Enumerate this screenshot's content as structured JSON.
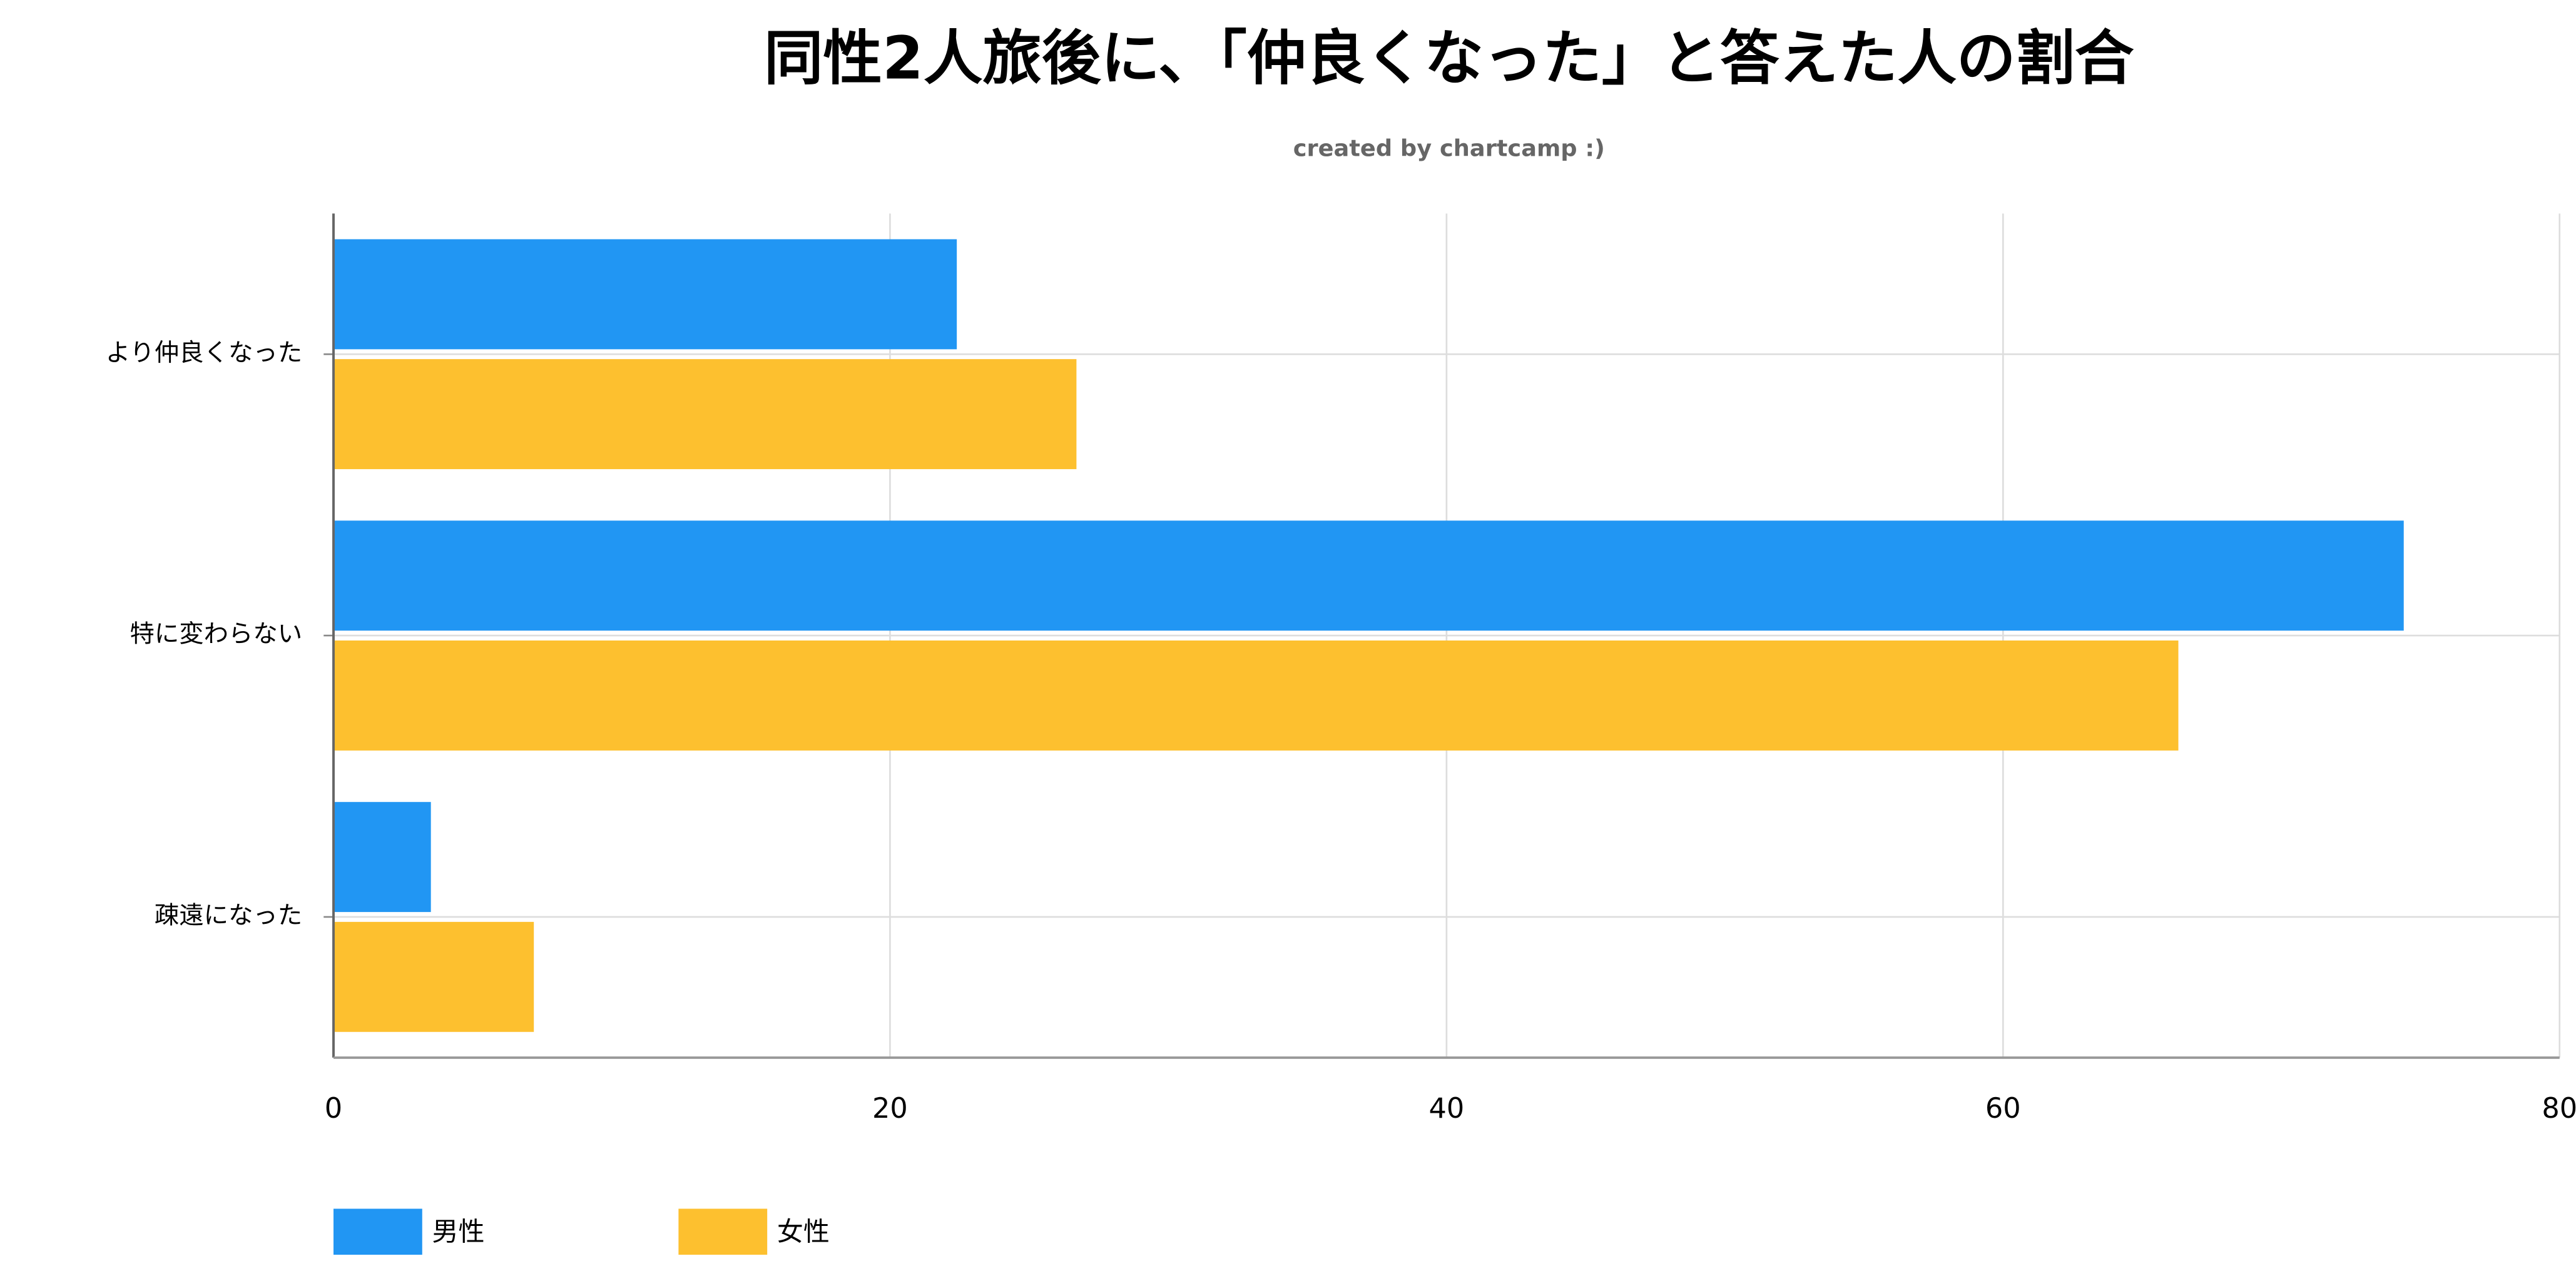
{
  "chart_data": {
    "type": "hbar",
    "title": "同性2人旅後に、「仲良くなった」と答えた人の割合",
    "subtitle": "created by chartcamp :)",
    "categories": [
      "より仲良くなった",
      "特に変わらない",
      "疎遠になった"
    ],
    "series": [
      {
        "name": "男性",
        "color": "#2196f3",
        "values": [
          22.4,
          74.4,
          3.5
        ]
      },
      {
        "name": "女性",
        "color": "#fdc02f",
        "values": [
          26.7,
          66.3,
          7.2
        ]
      }
    ],
    "xlim": [
      0,
      80
    ],
    "xticks": [
      0,
      20,
      40,
      60,
      80
    ],
    "grid": true,
    "legend": "bottom"
  }
}
